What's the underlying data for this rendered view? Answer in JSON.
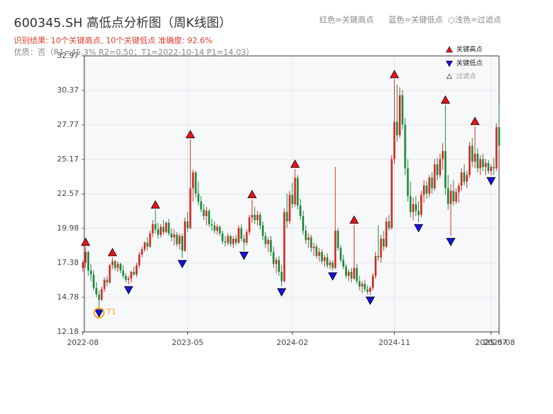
{
  "chart_data": {
    "type": "candlestick",
    "title": "600345.SH 高低点分析图（周K线图）",
    "subtitle": "识别结果: 10个关键高点, 10个关键低点  准确度: 92.6%",
    "note": "优质：否（R1=45.3%  R2=0.50；T1=2022-10-14 P1=14.03）",
    "legend_note": [
      "红色=关键高点",
      "蓝色=关键低点",
      "○浅色=过滤点"
    ],
    "up_color": "#d42a22",
    "down_color": "#1d8a3c",
    "grid": true,
    "ylim": [
      12.18,
      32.97
    ],
    "yticks": [
      12.18,
      14.78,
      17.38,
      19.98,
      22.57,
      25.17,
      27.77,
      30.37,
      32.97
    ],
    "categories": [
      "2022-08",
      null,
      null,
      null,
      null,
      null,
      null,
      null,
      null,
      null,
      null,
      null,
      null,
      null,
      null,
      null,
      null,
      null,
      null,
      null,
      null,
      null,
      null,
      null,
      null,
      null,
      null,
      null,
      null,
      null,
      null,
      null,
      null,
      null,
      null,
      null,
      null,
      null,
      null,
      "2023-05",
      null,
      null,
      null,
      null,
      null,
      null,
      null,
      null,
      null,
      null,
      null,
      null,
      null,
      null,
      null,
      null,
      null,
      null,
      null,
      null,
      null,
      null,
      null,
      null,
      null,
      null,
      null,
      null,
      null,
      null,
      null,
      null,
      null,
      null,
      null,
      null,
      null,
      null,
      "2024-02",
      null,
      null,
      null,
      null,
      null,
      null,
      null,
      null,
      null,
      null,
      null,
      null,
      null,
      null,
      null,
      null,
      null,
      null,
      null,
      null,
      null,
      null,
      null,
      null,
      null,
      null,
      null,
      null,
      null,
      null,
      null,
      null,
      null,
      null,
      null,
      null,
      null,
      "2024-11",
      null,
      null,
      null,
      null,
      null,
      null,
      null,
      null,
      null,
      null,
      null,
      null,
      null,
      null,
      null,
      null,
      null,
      null,
      null,
      null,
      null,
      null,
      null,
      null,
      null,
      null,
      null,
      null,
      null,
      null,
      null,
      null,
      null,
      null,
      null,
      "2025-07",
      null,
      null,
      "2025-08"
    ],
    "candles": [
      [
        17.0,
        17.6,
        16.7,
        17.4
      ],
      [
        17.4,
        18.57,
        17.0,
        18.2
      ],
      [
        18.2,
        18.3,
        16.4,
        16.8
      ],
      [
        16.8,
        17.3,
        16.0,
        16.5
      ],
      [
        16.5,
        16.8,
        15.3,
        15.5
      ],
      [
        15.5,
        15.9,
        14.8,
        15.0
      ],
      [
        15.0,
        15.3,
        14.03,
        14.6
      ],
      [
        14.6,
        15.6,
        14.5,
        15.4
      ],
      [
        15.4,
        16.3,
        15.2,
        16.1
      ],
      [
        16.1,
        16.4,
        15.6,
        15.9
      ],
      [
        15.9,
        17.3,
        15.8,
        17.2
      ],
      [
        17.2,
        17.79,
        16.9,
        17.5
      ],
      [
        17.5,
        17.6,
        16.8,
        17.0
      ],
      [
        17.0,
        17.5,
        16.7,
        17.3
      ],
      [
        17.3,
        17.4,
        16.6,
        16.8
      ],
      [
        16.8,
        17.2,
        16.2,
        16.4
      ],
      [
        16.4,
        16.6,
        15.9,
        16.1
      ],
      [
        16.1,
        16.4,
        15.77,
        16.2
      ],
      [
        16.2,
        16.8,
        15.9,
        16.7
      ],
      [
        16.7,
        17.1,
        16.4,
        16.5
      ],
      [
        16.5,
        17.4,
        16.3,
        17.2
      ],
      [
        17.2,
        18.2,
        17.0,
        18.0
      ],
      [
        18.0,
        18.6,
        17.8,
        18.4
      ],
      [
        18.4,
        19.0,
        18.2,
        18.9
      ],
      [
        18.9,
        19.3,
        18.3,
        18.6
      ],
      [
        18.6,
        19.8,
        18.5,
        19.6
      ],
      [
        19.6,
        20.6,
        19.3,
        20.3
      ],
      [
        20.3,
        21.38,
        19.6,
        19.9
      ],
      [
        19.9,
        20.4,
        19.2,
        19.5
      ],
      [
        19.5,
        20.3,
        19.3,
        20.1
      ],
      [
        20.1,
        20.6,
        19.5,
        19.7
      ],
      [
        19.7,
        20.5,
        19.6,
        20.4
      ],
      [
        20.4,
        20.7,
        19.4,
        19.6
      ],
      [
        19.6,
        20.0,
        19.0,
        19.3
      ],
      [
        19.3,
        19.9,
        18.7,
        19.5
      ],
      [
        19.5,
        19.7,
        18.6,
        18.8
      ],
      [
        18.8,
        19.6,
        18.4,
        19.4
      ],
      [
        19.4,
        19.6,
        17.74,
        18.3
      ],
      [
        18.3,
        20.8,
        18.2,
        20.5
      ],
      [
        20.5,
        21.2,
        19.7,
        20.0
      ],
      [
        20.0,
        26.68,
        19.9,
        23.0
      ],
      [
        23.0,
        24.4,
        22.0,
        24.2
      ],
      [
        24.2,
        24.3,
        22.3,
        22.6
      ],
      [
        22.6,
        23.5,
        21.7,
        22.0
      ],
      [
        22.0,
        22.4,
        21.2,
        21.4
      ],
      [
        21.4,
        21.8,
        20.6,
        20.9
      ],
      [
        20.9,
        21.6,
        20.2,
        21.3
      ],
      [
        21.3,
        21.4,
        20.1,
        20.3
      ],
      [
        20.3,
        20.7,
        19.8,
        20.2
      ],
      [
        20.2,
        20.5,
        19.6,
        19.8
      ],
      [
        19.8,
        20.3,
        19.5,
        20.1
      ],
      [
        20.1,
        20.2,
        19.4,
        19.6
      ],
      [
        19.6,
        19.8,
        18.8,
        19.0
      ],
      [
        19.0,
        19.4,
        18.6,
        18.9
      ],
      [
        18.9,
        19.6,
        18.7,
        19.4
      ],
      [
        19.4,
        19.5,
        18.6,
        18.8
      ],
      [
        18.8,
        19.4,
        18.5,
        19.2
      ],
      [
        19.2,
        19.5,
        18.7,
        18.9
      ],
      [
        18.9,
        20.2,
        18.8,
        20.0
      ],
      [
        20.0,
        20.3,
        19.0,
        19.2
      ],
      [
        19.2,
        19.5,
        18.36,
        18.9
      ],
      [
        18.9,
        19.9,
        18.7,
        19.7
      ],
      [
        19.7,
        21.0,
        19.5,
        20.8
      ],
      [
        20.8,
        22.16,
        20.4,
        21.0
      ],
      [
        21.0,
        21.6,
        20.3,
        20.6
      ],
      [
        20.6,
        21.3,
        20.2,
        21.0
      ],
      [
        21.0,
        21.2,
        19.9,
        20.2
      ],
      [
        20.2,
        20.5,
        19.1,
        19.4
      ],
      [
        19.4,
        19.7,
        18.5,
        18.8
      ],
      [
        18.8,
        19.3,
        18.2,
        19.1
      ],
      [
        19.1,
        19.4,
        17.9,
        18.2
      ],
      [
        18.2,
        18.6,
        17.0,
        17.3
      ],
      [
        17.3,
        17.8,
        16.6,
        17.6
      ],
      [
        17.6,
        17.9,
        16.4,
        16.7
      ],
      [
        16.7,
        17.2,
        15.61,
        16.0
      ],
      [
        16.0,
        21.5,
        15.9,
        21.2
      ],
      [
        21.2,
        22.6,
        20.0,
        20.5
      ],
      [
        20.5,
        22.8,
        20.3,
        22.5
      ],
      [
        22.5,
        23.4,
        21.5,
        21.8
      ],
      [
        21.8,
        24.45,
        21.6,
        23.8
      ],
      [
        23.8,
        24.0,
        21.4,
        21.7
      ],
      [
        21.7,
        22.2,
        20.6,
        20.9
      ],
      [
        20.9,
        21.3,
        19.5,
        19.8
      ],
      [
        19.8,
        20.2,
        18.8,
        19.1
      ],
      [
        19.1,
        19.6,
        18.5,
        19.3
      ],
      [
        19.3,
        19.5,
        18.2,
        18.5
      ],
      [
        18.5,
        18.9,
        17.9,
        18.6
      ],
      [
        18.6,
        18.8,
        17.7,
        17.9
      ],
      [
        17.9,
        18.5,
        17.5,
        18.2
      ],
      [
        18.2,
        18.4,
        17.3,
        17.5
      ],
      [
        17.5,
        18.0,
        17.1,
        17.8
      ],
      [
        17.8,
        18.1,
        17.0,
        17.2
      ],
      [
        17.2,
        17.6,
        16.9,
        17.4
      ],
      [
        17.4,
        17.6,
        16.81,
        17.0
      ],
      [
        17.0,
        24.6,
        16.9,
        19.8
      ],
      [
        19.8,
        20.0,
        18.3,
        18.5
      ],
      [
        18.5,
        18.7,
        17.4,
        17.6
      ],
      [
        17.6,
        18.0,
        16.9,
        17.1
      ],
      [
        17.1,
        17.3,
        16.2,
        16.4
      ],
      [
        16.4,
        16.9,
        16.0,
        16.7
      ],
      [
        16.7,
        17.0,
        15.9,
        16.2
      ],
      [
        16.2,
        20.24,
        16.1,
        17.0
      ],
      [
        17.0,
        17.3,
        15.8,
        16.0
      ],
      [
        16.0,
        16.4,
        15.3,
        15.6
      ],
      [
        15.6,
        16.0,
        15.1,
        15.8
      ],
      [
        15.8,
        16.1,
        15.2,
        15.4
      ],
      [
        15.4,
        15.7,
        15.0,
        15.2
      ],
      [
        15.2,
        15.6,
        14.98,
        15.5
      ],
      [
        15.5,
        16.6,
        15.3,
        16.4
      ],
      [
        16.4,
        18.2,
        16.2,
        17.9
      ],
      [
        17.9,
        20.2,
        17.5,
        17.8
      ],
      [
        17.8,
        19.5,
        17.4,
        19.2
      ],
      [
        19.2,
        19.8,
        18.3,
        18.6
      ],
      [
        18.6,
        20.8,
        18.5,
        20.5
      ],
      [
        20.5,
        21.0,
        19.8,
        20.0
      ],
      [
        20.0,
        25.5,
        19.9,
        25.2
      ],
      [
        25.2,
        31.2,
        24.8,
        28.0
      ],
      [
        28.0,
        30.8,
        26.5,
        27.0
      ],
      [
        27.0,
        30.6,
        26.8,
        30.0
      ],
      [
        30.0,
        30.4,
        27.4,
        27.8
      ],
      [
        27.8,
        28.3,
        24.0,
        24.5
      ],
      [
        24.5,
        25.2,
        22.0,
        22.4
      ],
      [
        22.4,
        23.5,
        20.8,
        21.2
      ],
      [
        21.2,
        22.3,
        20.6,
        21.8
      ],
      [
        21.8,
        22.4,
        20.9,
        21.3
      ],
      [
        21.3,
        22.0,
        20.44,
        21.0
      ],
      [
        21.0,
        22.8,
        20.8,
        22.5
      ],
      [
        22.5,
        23.6,
        21.9,
        23.2
      ],
      [
        23.2,
        23.5,
        22.2,
        22.6
      ],
      [
        22.6,
        24.0,
        22.3,
        23.8
      ],
      [
        23.8,
        24.2,
        22.6,
        23.0
      ],
      [
        23.0,
        25.2,
        22.8,
        24.8
      ],
      [
        24.8,
        25.3,
        23.6,
        24.0
      ],
      [
        24.0,
        25.6,
        23.8,
        25.2
      ],
      [
        25.2,
        26.4,
        24.4,
        25.8
      ],
      [
        25.8,
        29.28,
        22.5,
        23.0
      ],
      [
        23.0,
        24.0,
        21.4,
        21.8
      ],
      [
        21.8,
        23.3,
        19.4,
        22.8
      ],
      [
        22.8,
        23.6,
        21.7,
        22.0
      ],
      [
        22.0,
        23.0,
        21.8,
        22.7
      ],
      [
        22.7,
        23.4,
        21.9,
        23.2
      ],
      [
        23.2,
        24.5,
        22.8,
        24.2
      ],
      [
        24.2,
        24.8,
        23.2,
        23.5
      ],
      [
        23.5,
        24.3,
        23.0,
        24.0
      ],
      [
        24.0,
        26.5,
        23.8,
        26.2
      ],
      [
        26.2,
        26.8,
        24.6,
        25.0
      ],
      [
        25.0,
        27.67,
        24.5,
        25.6
      ],
      [
        25.6,
        26.0,
        24.2,
        24.5
      ],
      [
        24.5,
        25.5,
        24.0,
        25.2
      ],
      [
        25.2,
        25.6,
        24.3,
        24.6
      ],
      [
        24.6,
        25.2,
        24.0,
        24.9
      ],
      [
        24.9,
        25.1,
        24.1,
        24.3
      ],
      [
        24.3,
        24.8,
        23.98,
        24.6
      ],
      [
        24.6,
        25.3,
        24.0,
        24.5
      ],
      [
        24.5,
        27.9,
        24.3,
        27.6
      ],
      [
        27.6,
        29.3,
        25.8,
        26.2
      ]
    ],
    "key_highs": {
      "name": "关键高点",
      "color": "#e8141c",
      "points": [
        [
          1,
          18.57
        ],
        [
          11,
          17.79
        ],
        [
          27,
          21.38
        ],
        [
          40,
          26.68
        ],
        [
          63,
          22.16
        ],
        [
          79,
          24.45
        ],
        [
          101,
          20.24
        ],
        [
          116,
          31.2
        ],
        [
          135,
          29.28
        ],
        [
          146,
          27.67
        ]
      ]
    },
    "key_lows": {
      "name": "关键低点",
      "color": "#1414e0",
      "points": [
        [
          6,
          14.03
        ],
        [
          17,
          15.77
        ],
        [
          37,
          17.74
        ],
        [
          60,
          18.36
        ],
        [
          74,
          15.61
        ],
        [
          93,
          16.81
        ],
        [
          107,
          14.98
        ],
        [
          125,
          20.44
        ],
        [
          137,
          19.4
        ],
        [
          152,
          23.98
        ]
      ]
    },
    "filtered": {
      "name": "过滤点",
      "color": "#ffffff"
    },
    "t1": {
      "label": "T1",
      "index": 6,
      "value": 14.03,
      "color": "#f5a623"
    }
  }
}
